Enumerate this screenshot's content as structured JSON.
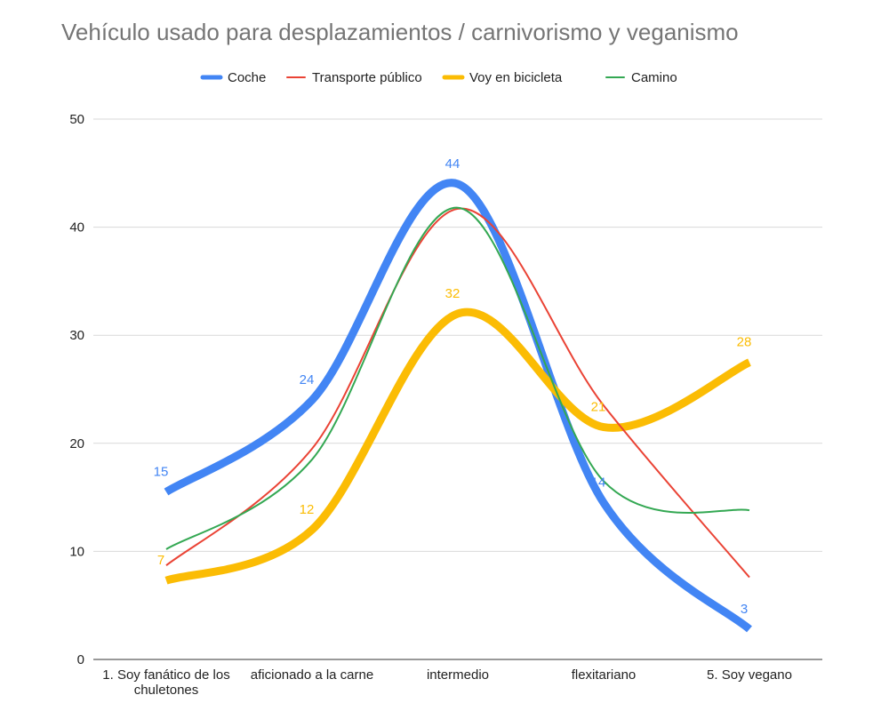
{
  "chart_data": {
    "type": "line",
    "title": "Vehículo usado para desplazamientos / carnivorismo y veganismo",
    "categories": [
      "1. Soy fanático de los chuletones",
      "aficionado a la carne",
      "intermedio",
      "flexitariano",
      "5. Soy vegano"
    ],
    "category_lines": [
      [
        "1. Soy fanático de los",
        "chuletones"
      ],
      [
        "aficionado a la carne"
      ],
      [
        "intermedio"
      ],
      [
        "flexitariano"
      ],
      [
        "5. Soy vegano"
      ]
    ],
    "ylim": [
      0,
      50
    ],
    "yticks": [
      0,
      10,
      20,
      30,
      40,
      50
    ],
    "legend_position": "top-center",
    "series": [
      {
        "name": "Coche",
        "color": "#4285F4",
        "values": [
          15.5,
          24,
          44,
          14.5,
          2.8
        ],
        "labels": [
          "15",
          "24",
          "44",
          "14",
          "3"
        ],
        "thick": true
      },
      {
        "name": "Transporte público",
        "color": "#EA4335",
        "values": [
          8.7,
          19.5,
          41.7,
          23.5,
          7.6
        ],
        "labels": null,
        "thick": false
      },
      {
        "name": "Voy en bicicleta",
        "color": "#FBBC04",
        "values": [
          7.3,
          12,
          32,
          21.5,
          27.5
        ],
        "labels": [
          "7",
          "12",
          "32",
          "21",
          "28"
        ],
        "thick": true
      },
      {
        "name": "Camino",
        "color": "#34A853",
        "values": [
          10.2,
          18.5,
          41.8,
          16.5,
          13.8
        ],
        "labels": null,
        "thick": false
      }
    ]
  }
}
